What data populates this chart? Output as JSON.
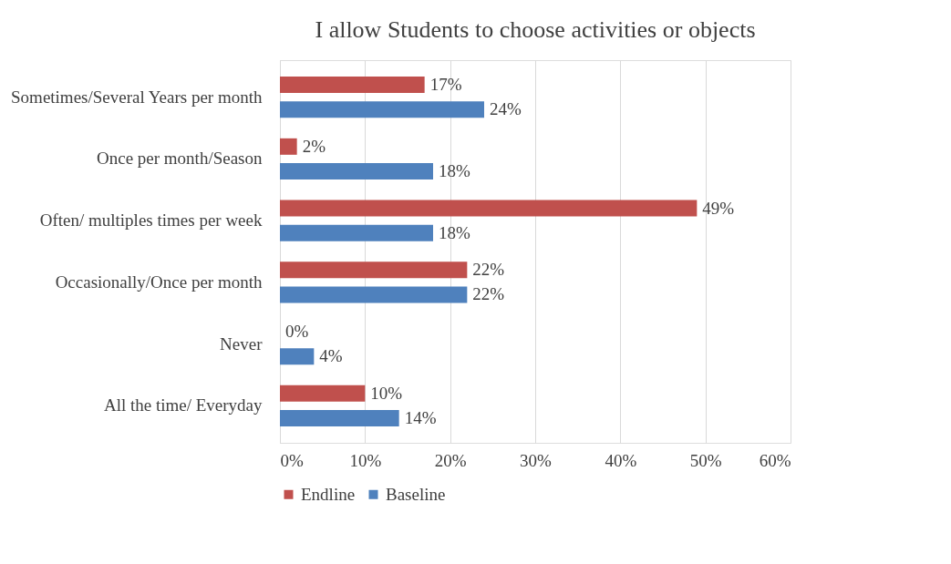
{
  "chart_data": {
    "type": "bar",
    "orientation": "horizontal",
    "title": "I allow Students to choose activities or objects",
    "categories": [
      "Sometimes/Several Years per month",
      "Once per month/Season",
      "Often/ multiples times per week",
      "Occasionally/Once per month",
      "Never",
      "All the time/ Everyday"
    ],
    "series": [
      {
        "name": "Endline",
        "color": "#c0504d",
        "values": [
          17,
          2,
          49,
          22,
          0,
          10
        ],
        "value_labels": [
          "17%",
          "2%",
          "49%",
          "22%",
          "0%",
          "10%"
        ]
      },
      {
        "name": "Baseline",
        "color": "#4f81bd",
        "values": [
          24,
          18,
          18,
          22,
          4,
          14
        ],
        "value_labels": [
          "24%",
          "18%",
          "18%",
          "22%",
          "4%",
          "14%"
        ]
      }
    ],
    "xlim": [
      0,
      60
    ],
    "xticks": [
      {
        "value": 0,
        "label": "0%"
      },
      {
        "value": 10,
        "label": "10%"
      },
      {
        "value": 20,
        "label": "20%"
      },
      {
        "value": 30,
        "label": "30%"
      },
      {
        "value": 40,
        "label": "40%"
      },
      {
        "value": 50,
        "label": "50%"
      },
      {
        "value": 60,
        "label": "60%"
      }
    ],
    "grid": "x",
    "legend": "bottom"
  }
}
